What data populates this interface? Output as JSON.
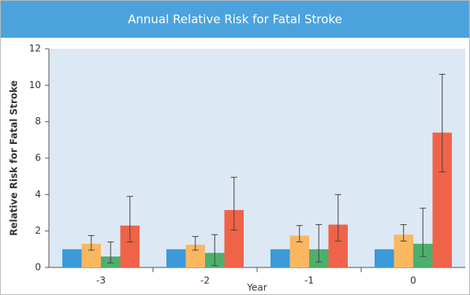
{
  "chart_data": {
    "type": "bar",
    "title": "Annual Relative Risk for Fatal Stroke",
    "x_label": "Year",
    "y_label": "Relative Risk for Fatal Stroke",
    "categories": [
      "-3",
      "-2",
      "-1",
      "0"
    ],
    "series": [
      {
        "color": "#3d9ad9",
        "values": [
          1,
          1,
          1,
          1
        ],
        "low": [
          null,
          null,
          null,
          null
        ],
        "high": [
          null,
          null,
          null,
          null
        ]
      },
      {
        "color": "#fbb760",
        "values": [
          1.3,
          1.25,
          1.75,
          1.8
        ],
        "low": [
          0.95,
          0.95,
          1.4,
          1.45
        ],
        "high": [
          1.75,
          1.7,
          2.3,
          2.35
        ]
      },
      {
        "color": "#4daf6c",
        "values": [
          0.6,
          0.8,
          1.0,
          1.3
        ],
        "low": [
          0.25,
          0.1,
          0.3,
          0.6
        ],
        "high": [
          1.4,
          1.8,
          2.35,
          3.25
        ]
      },
      {
        "color": "#ef6348",
        "values": [
          2.3,
          3.15,
          2.35,
          7.4
        ],
        "low": [
          1.4,
          2.05,
          1.45,
          5.25
        ],
        "high": [
          3.9,
          4.95,
          4.0,
          10.6
        ]
      }
    ],
    "ylim": [
      0,
      12
    ],
    "yticks": [
      0,
      2,
      4,
      6,
      8,
      10,
      12
    ],
    "grid": false
  }
}
